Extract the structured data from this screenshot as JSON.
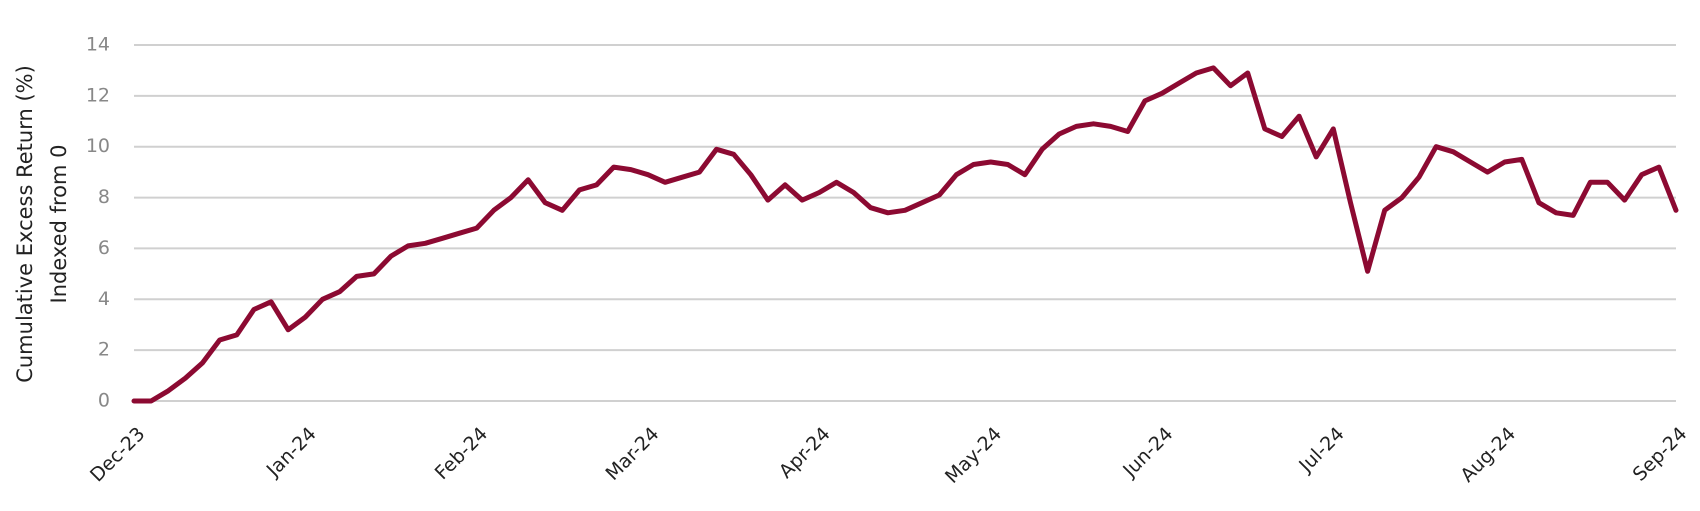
{
  "chart_data": {
    "type": "line",
    "y_label": [
      "Cumulative Excess Return (%)",
      "Indexed from 0"
    ],
    "categories": [
      "Dec-23",
      null,
      null,
      null,
      null,
      null,
      null,
      null,
      null,
      null,
      "Jan-24",
      null,
      null,
      null,
      null,
      null,
      null,
      null,
      null,
      null,
      "Feb-24",
      null,
      null,
      null,
      null,
      null,
      null,
      null,
      null,
      null,
      "Mar-24",
      null,
      null,
      null,
      null,
      null,
      null,
      null,
      null,
      null,
      "Apr-24",
      null,
      null,
      null,
      null,
      null,
      null,
      null,
      null,
      null,
      "May-24",
      null,
      null,
      null,
      null,
      null,
      null,
      null,
      null,
      null,
      "Jun-24",
      null,
      null,
      null,
      null,
      null,
      null,
      null,
      null,
      null,
      "Jul-24",
      null,
      null,
      null,
      null,
      null,
      null,
      null,
      null,
      null,
      "Aug-24",
      null,
      null,
      null,
      null,
      null,
      null,
      null,
      null,
      null,
      "Sep-24"
    ],
    "values": [
      0,
      0,
      0.4,
      0.9,
      1.5,
      2.4,
      2.6,
      3.6,
      3.9,
      2.8,
      3.3,
      4.0,
      4.3,
      4.9,
      5.0,
      5.7,
      6.1,
      6.2,
      6.4,
      6.6,
      6.8,
      7.5,
      8.0,
      8.7,
      7.8,
      7.5,
      8.3,
      8.5,
      9.2,
      9.1,
      8.9,
      8.6,
      8.8,
      9.0,
      9.9,
      9.7,
      8.9,
      7.9,
      8.5,
      7.9,
      8.2,
      8.6,
      8.2,
      7.6,
      7.4,
      7.5,
      7.8,
      8.1,
      8.9,
      9.3,
      9.4,
      9.3,
      8.9,
      9.9,
      10.5,
      10.8,
      10.9,
      10.8,
      10.6,
      11.8,
      12.1,
      12.5,
      12.9,
      13.1,
      12.4,
      12.9,
      10.7,
      10.4,
      11.2,
      9.6,
      10.7,
      7.8,
      5.1,
      7.5,
      8.0,
      8.8,
      10.0,
      9.8,
      9.4,
      9.0,
      9.4,
      9.5,
      7.8,
      7.4,
      7.3,
      8.6,
      8.6,
      7.9,
      8.9,
      9.2,
      7.5
    ],
    "color": "#8c0a32",
    "ylim": [
      0,
      14
    ],
    "yticks": [
      0,
      2,
      4,
      6,
      8,
      10,
      12,
      14
    ],
    "grid": true
  }
}
